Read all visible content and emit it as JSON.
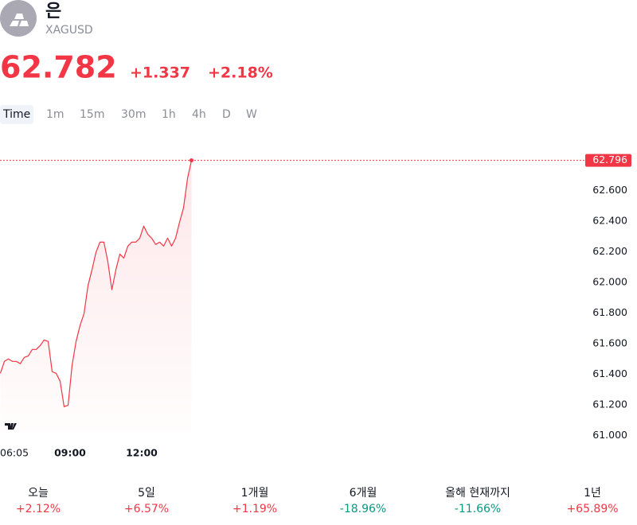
{
  "header": {
    "name": "은",
    "symbol": "XAGUSD",
    "price": "62.782",
    "change": "+1.337",
    "change_pct": "+2.18%"
  },
  "intervals": [
    "Time",
    "1m",
    "15m",
    "30m",
    "1h",
    "4h",
    "D",
    "W"
  ],
  "chart_data": {
    "type": "line",
    "color": "#f23645",
    "x": [
      "06:05",
      "06:15",
      "06:25",
      "06:35",
      "06:45",
      "06:55",
      "07:05",
      "07:15",
      "07:25",
      "07:35",
      "07:45",
      "07:55",
      "08:05",
      "08:15",
      "08:25",
      "08:35",
      "08:45",
      "08:55",
      "09:05",
      "09:15",
      "09:25",
      "09:35",
      "09:45",
      "09:55",
      "10:05",
      "10:15",
      "10:25",
      "10:35",
      "10:45",
      "10:55",
      "11:05",
      "11:15",
      "11:25",
      "11:35",
      "11:45",
      "11:55",
      "12:05",
      "12:15",
      "12:25",
      "12:35",
      "12:45",
      "12:55",
      "13:05",
      "13:15",
      "13:25",
      "13:35",
      "13:45",
      "13:55",
      "14:05"
    ],
    "values": [
      61.405,
      61.483,
      61.499,
      61.483,
      61.483,
      61.468,
      61.509,
      61.519,
      61.561,
      61.561,
      61.587,
      61.623,
      61.613,
      61.416,
      61.405,
      61.353,
      61.187,
      61.197,
      61.457,
      61.613,
      61.717,
      61.795,
      61.977,
      62.081,
      62.195,
      62.262,
      62.262,
      62.132,
      61.951,
      62.081,
      62.184,
      62.158,
      62.236,
      62.262,
      62.262,
      62.288,
      62.366,
      62.314,
      62.288,
      62.247,
      62.262,
      62.236,
      62.288,
      62.236,
      62.288,
      62.392,
      62.486,
      62.678,
      62.796
    ],
    "xticks": [
      "06:05",
      "09:00",
      "12:00"
    ],
    "ylim": [
      60.96,
      63.02
    ],
    "yticks": [
      {
        "value": 61.0,
        "label": "61.000"
      },
      {
        "value": 61.2,
        "label": "61.200"
      },
      {
        "value": 61.4,
        "label": "61.400"
      },
      {
        "value": 61.6,
        "label": "61.600"
      },
      {
        "value": 61.8,
        "label": "61.800"
      },
      {
        "value": 62.0,
        "label": "62.000"
      },
      {
        "value": 62.2,
        "label": "62.200"
      },
      {
        "value": 62.4,
        "label": "62.400"
      },
      {
        "value": 62.6,
        "label": "62.600"
      }
    ],
    "last_price": {
      "value": 62.796,
      "label": "62.796"
    }
  },
  "performance": [
    {
      "label": "오늘",
      "value": "+2.12%"
    },
    {
      "label": "5일",
      "value": "+6.57%"
    },
    {
      "label": "1개월",
      "value": "+1.19%"
    },
    {
      "label": "6개월",
      "value": "-18.96%"
    },
    {
      "label": "올해 현재까지",
      "value": "-11.66%"
    },
    {
      "label": "1년",
      "value": "+65.89%"
    }
  ]
}
